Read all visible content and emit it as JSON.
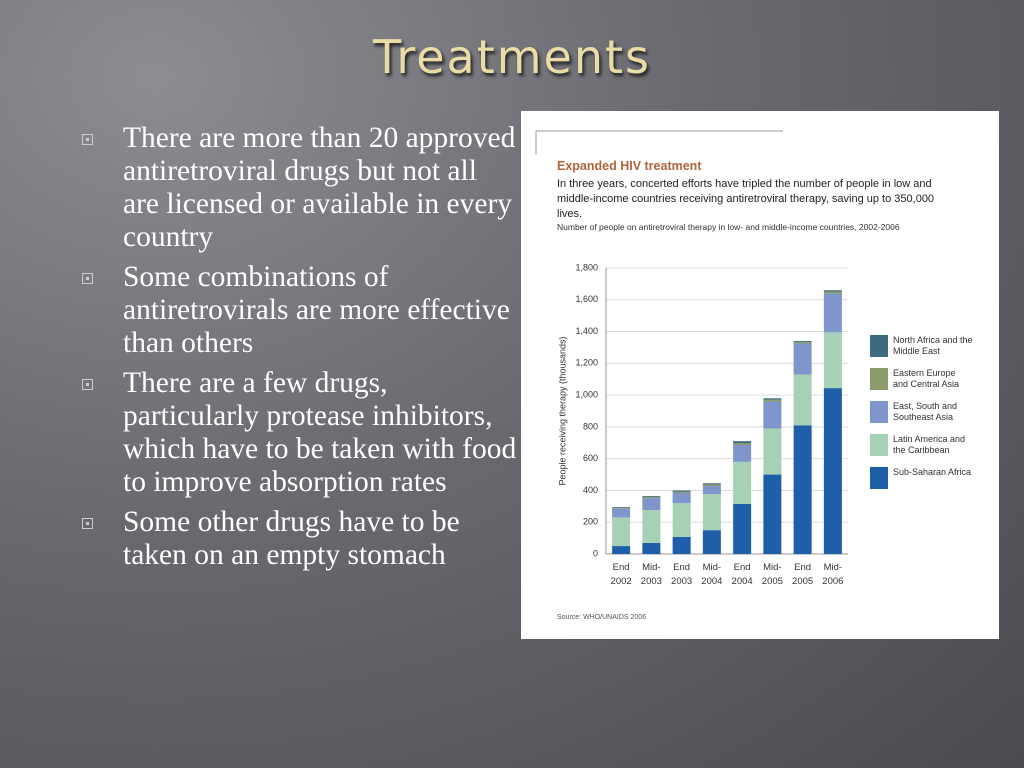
{
  "slide": {
    "title": "Treatments",
    "bullets": [
      "There are more than 20 approved antiretroviral drugs but not all are licensed or available in every country",
      "Some combinations of antiretrovirals are more effective than others",
      "There are a few drugs, particularly protease inhibitors, which have to be taken with food to improve absorption rates",
      "Some other drugs have to be taken on an empty stomach"
    ]
  },
  "chart_data": {
    "type": "stacked_bar",
    "title": "Expanded HIV treatment",
    "subtitle": "In three years, concerted efforts have tripled the number of people in low and middle-income countries receiving antiretroviral therapy, saving up to 350,000 lives.",
    "note": "Number of people on antiretroviral therapy in low- and middle-income countries, 2002-2006",
    "source": "Source: WHO/UNAIDS 2006",
    "y_label": "People receiving therapy (thousands)",
    "categories": [
      "End 2002",
      "Mid-2003",
      "End 2003",
      "Mid-2004",
      "End 2004",
      "Mid-2005",
      "End 2005",
      "Mid-2006"
    ],
    "series": [
      {
        "name": "Sub-Saharan Africa",
        "color": "#1f5ea8",
        "values": [
          50,
          70,
          107,
          150,
          315,
          500,
          810,
          1044
        ]
      },
      {
        "name": "Latin America and the Caribbean",
        "color": "#a6d1b6",
        "values": [
          180,
          207,
          213,
          227,
          265,
          290,
          320,
          351
        ]
      },
      {
        "name": "East, South and Southeast Asia",
        "color": "#7f95cc",
        "values": [
          55,
          75,
          64,
          51,
          106,
          170,
          195,
          245
        ]
      },
      {
        "name": "Eastern Europe and Central Asia",
        "color": "#8c9a6b",
        "values": [
          5,
          8,
          8,
          10,
          12,
          12,
          8,
          12
        ]
      },
      {
        "name": "North Africa and the Middle East",
        "color": "#3d6b7d",
        "values": [
          5,
          5,
          8,
          7,
          12,
          8,
          7,
          8
        ]
      }
    ],
    "ylim": [
      0,
      1800
    ],
    "yticks": [
      0,
      200,
      400,
      600,
      800,
      {
        "value": 1000,
        "label": "1,000"
      },
      {
        "value": 1200,
        "label": "1,200"
      },
      {
        "value": 1400,
        "label": "1,400"
      },
      {
        "value": 1600,
        "label": "1,600"
      },
      {
        "value": 1800,
        "label": "1,800"
      }
    ],
    "grid": true,
    "legend": "right"
  }
}
